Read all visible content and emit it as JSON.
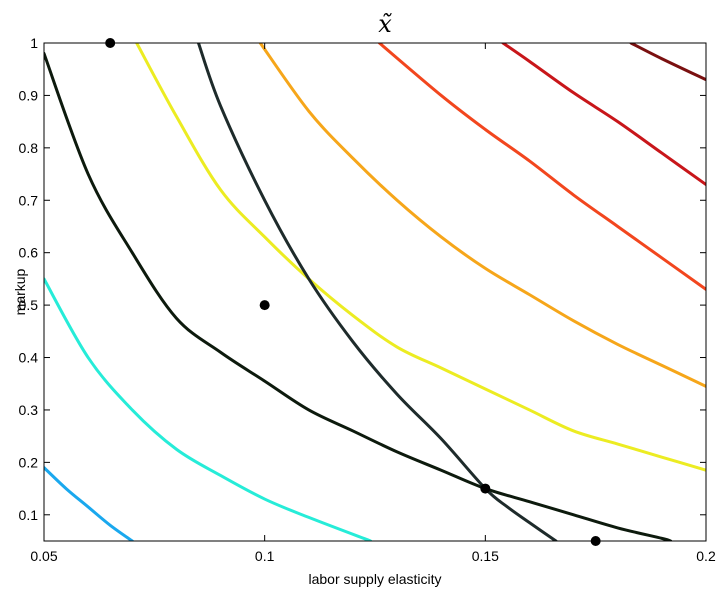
{
  "chart_data": {
    "type": "line",
    "title": "x̃",
    "xlabel": "labor supply elasticity",
    "ylabel": "markup",
    "xlim": [
      0.05,
      0.2
    ],
    "ylim": [
      0.05,
      1.0
    ],
    "grid": false,
    "x_ticks": [
      "0.05",
      "0.1",
      "0.15",
      "0.2"
    ],
    "y_ticks": [
      "0.1",
      "0.2",
      "0.3",
      "0.4",
      "0.5",
      "0.6",
      "0.7",
      "0.8",
      "0.9",
      "1"
    ],
    "series": [
      {
        "color": "#1aa8ee",
        "width": 3,
        "points": [
          [
            0.05,
            0.19
          ],
          [
            0.055,
            0.15
          ],
          [
            0.06,
            0.115
          ],
          [
            0.065,
            0.08
          ],
          [
            0.07,
            0.05
          ]
        ]
      },
      {
        "color": "#26ecd8",
        "width": 3,
        "points": [
          [
            0.05,
            0.55
          ],
          [
            0.06,
            0.4
          ],
          [
            0.07,
            0.3
          ],
          [
            0.08,
            0.225
          ],
          [
            0.09,
            0.175
          ],
          [
            0.1,
            0.13
          ],
          [
            0.11,
            0.095
          ],
          [
            0.124,
            0.05
          ]
        ]
      },
      {
        "color": "#0d1a0d",
        "width": 3,
        "points": [
          [
            0.05,
            0.98
          ],
          [
            0.06,
            0.75
          ],
          [
            0.07,
            0.6
          ],
          [
            0.08,
            0.475
          ],
          [
            0.09,
            0.41
          ],
          [
            0.1,
            0.355
          ],
          [
            0.11,
            0.3
          ],
          [
            0.12,
            0.26
          ],
          [
            0.13,
            0.22
          ],
          [
            0.14,
            0.185
          ],
          [
            0.15,
            0.15
          ],
          [
            0.16,
            0.125
          ],
          [
            0.17,
            0.1
          ],
          [
            0.18,
            0.075
          ],
          [
            0.19,
            0.055
          ],
          [
            0.192,
            0.05
          ]
        ]
      },
      {
        "color": "#ecec22",
        "width": 3,
        "points": [
          [
            0.071,
            1.0
          ],
          [
            0.08,
            0.86
          ],
          [
            0.09,
            0.72
          ],
          [
            0.1,
            0.63
          ],
          [
            0.11,
            0.55
          ],
          [
            0.12,
            0.48
          ],
          [
            0.13,
            0.42
          ],
          [
            0.14,
            0.38
          ],
          [
            0.15,
            0.34
          ],
          [
            0.16,
            0.3
          ],
          [
            0.17,
            0.26
          ],
          [
            0.18,
            0.235
          ],
          [
            0.19,
            0.21
          ],
          [
            0.2,
            0.185
          ]
        ]
      },
      {
        "color": "#1e2b2b",
        "width": 3,
        "points": [
          [
            0.085,
            1.0
          ],
          [
            0.09,
            0.88
          ],
          [
            0.1,
            0.7
          ],
          [
            0.11,
            0.55
          ],
          [
            0.12,
            0.43
          ],
          [
            0.13,
            0.33
          ],
          [
            0.14,
            0.245
          ],
          [
            0.15,
            0.15
          ],
          [
            0.155,
            0.115
          ],
          [
            0.16,
            0.085
          ],
          [
            0.166,
            0.05
          ]
        ]
      },
      {
        "color": "#f6a61a",
        "width": 3,
        "points": [
          [
            0.099,
            1.0
          ],
          [
            0.11,
            0.87
          ],
          [
            0.12,
            0.78
          ],
          [
            0.13,
            0.7
          ],
          [
            0.14,
            0.63
          ],
          [
            0.15,
            0.57
          ],
          [
            0.16,
            0.52
          ],
          [
            0.17,
            0.47
          ],
          [
            0.18,
            0.425
          ],
          [
            0.19,
            0.385
          ],
          [
            0.2,
            0.345
          ]
        ]
      },
      {
        "color": "#f2461e",
        "width": 3,
        "points": [
          [
            0.126,
            1.0
          ],
          [
            0.14,
            0.9
          ],
          [
            0.15,
            0.835
          ],
          [
            0.16,
            0.775
          ],
          [
            0.17,
            0.71
          ],
          [
            0.18,
            0.65
          ],
          [
            0.19,
            0.59
          ],
          [
            0.2,
            0.53
          ]
        ]
      },
      {
        "color": "#c8161a",
        "width": 3,
        "points": [
          [
            0.154,
            1.0
          ],
          [
            0.16,
            0.965
          ],
          [
            0.17,
            0.905
          ],
          [
            0.18,
            0.85
          ],
          [
            0.19,
            0.79
          ],
          [
            0.2,
            0.73
          ]
        ]
      },
      {
        "color": "#7a1010",
        "width": 3,
        "points": [
          [
            0.183,
            1.0
          ],
          [
            0.19,
            0.97
          ],
          [
            0.2,
            0.93
          ]
        ]
      }
    ],
    "markers": [
      {
        "x": 0.065,
        "y": 1.0
      },
      {
        "x": 0.1,
        "y": 0.5
      },
      {
        "x": 0.15,
        "y": 0.15
      },
      {
        "x": 0.175,
        "y": 0.05
      }
    ]
  }
}
